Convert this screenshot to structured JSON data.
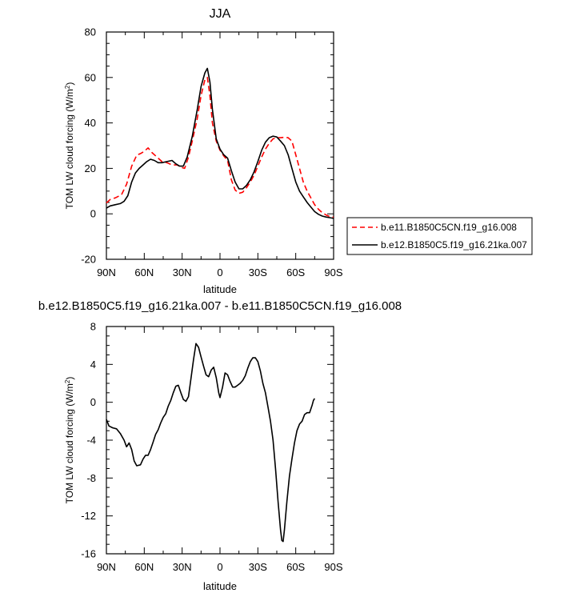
{
  "chart_data": [
    {
      "type": "line",
      "title": "JJA",
      "xlabel": "latitude",
      "ylabel": "TOM LW cloud forcing (W/m²)",
      "xlim": [
        -90,
        90
      ],
      "ylim": [
        -20,
        80
      ],
      "x_ticks": [
        -90,
        -60,
        -30,
        0,
        30,
        60,
        90
      ],
      "x_tick_labels": [
        "90N",
        "60N",
        "30N",
        "0",
        "30S",
        "60S",
        "90S"
      ],
      "y_ticks": [
        -20,
        0,
        20,
        40,
        60,
        80
      ],
      "y_tick_labels": [
        "-20",
        "0",
        "20",
        "40",
        "60",
        "80"
      ],
      "legend_position": "right",
      "series": [
        {
          "name": "b.e11.B1850C5CN.f19_g16.008",
          "color": "#ff0000",
          "dash": "dashed",
          "points": [
            [
              -90,
              4.8
            ],
            [
              -87,
              6.3
            ],
            [
              -83,
              7.0
            ],
            [
              -78,
              8.4
            ],
            [
              -74,
              13.0
            ],
            [
              -70,
              21.0
            ],
            [
              -66,
              25.8
            ],
            [
              -63,
              26.5
            ],
            [
              -60,
              27.5
            ],
            [
              -57,
              29.0
            ],
            [
              -54,
              27.0
            ],
            [
              -50,
              25.0
            ],
            [
              -46,
              23.0
            ],
            [
              -42,
              22.5
            ],
            [
              -38,
              21.5
            ],
            [
              -34,
              21.5
            ],
            [
              -31,
              20.5
            ],
            [
              -28,
              20.0
            ],
            [
              -25,
              25.0
            ],
            [
              -22,
              32.0
            ],
            [
              -18,
              42.0
            ],
            [
              -15,
              52.0
            ],
            [
              -12,
              59.0
            ],
            [
              -10,
              60.0
            ],
            [
              -8,
              52.0
            ],
            [
              -6,
              40.0
            ],
            [
              -3,
              32.0
            ],
            [
              0,
              28.0
            ],
            [
              3,
              25.5
            ],
            [
              6,
              23.5
            ],
            [
              9,
              15.0
            ],
            [
              12,
              10.5
            ],
            [
              15,
              9.0
            ],
            [
              18,
              9.5
            ],
            [
              21,
              11.5
            ],
            [
              24,
              14.0
            ],
            [
              27,
              17.0
            ],
            [
              30,
              21.0
            ],
            [
              33,
              25.0
            ],
            [
              36,
              28.5
            ],
            [
              39,
              31.0
            ],
            [
              42,
              33.0
            ],
            [
              45,
              33.5
            ],
            [
              48,
              33.5
            ],
            [
              51,
              33.7
            ],
            [
              54,
              33.5
            ],
            [
              57,
              32.0
            ],
            [
              60,
              26.0
            ],
            [
              63,
              20.0
            ],
            [
              66,
              14.0
            ],
            [
              69,
              10.0
            ],
            [
              72,
              7.0
            ],
            [
              75,
              4.0
            ],
            [
              78,
              2.0
            ],
            [
              81,
              0.5
            ],
            [
              84,
              -0.5
            ],
            [
              87,
              -1.2
            ],
            [
              90,
              -1.5
            ]
          ]
        },
        {
          "name": "b.e12.B1850C5.f19_g16.21ka.007",
          "color": "#000000",
          "dash": "solid",
          "points": [
            [
              -90,
              2.5
            ],
            [
              -87,
              3.5
            ],
            [
              -83,
              4.0
            ],
            [
              -79,
              4.5
            ],
            [
              -76,
              5.5
            ],
            [
              -73,
              8.0
            ],
            [
              -70,
              14.0
            ],
            [
              -67,
              18.0
            ],
            [
              -64,
              20.0
            ],
            [
              -61,
              21.5
            ],
            [
              -58,
              23.0
            ],
            [
              -55,
              24.0
            ],
            [
              -52,
              23.5
            ],
            [
              -49,
              22.5
            ],
            [
              -46,
              22.5
            ],
            [
              -42,
              23.0
            ],
            [
              -38,
              23.5
            ],
            [
              -35,
              22.0
            ],
            [
              -32,
              21.0
            ],
            [
              -29,
              21.0
            ],
            [
              -26,
              25.0
            ],
            [
              -22,
              34.0
            ],
            [
              -18,
              46.0
            ],
            [
              -15,
              56.0
            ],
            [
              -12,
              62.0
            ],
            [
              -10,
              64.0
            ],
            [
              -8,
              58.0
            ],
            [
              -6,
              46.0
            ],
            [
              -3,
              33.0
            ],
            [
              0,
              28.5
            ],
            [
              3,
              26.0
            ],
            [
              6,
              24.5
            ],
            [
              9,
              19.0
            ],
            [
              12,
              14.0
            ],
            [
              15,
              11.0
            ],
            [
              18,
              11.0
            ],
            [
              21,
              12.5
            ],
            [
              24,
              15.0
            ],
            [
              27,
              18.5
            ],
            [
              30,
              23.0
            ],
            [
              33,
              28.0
            ],
            [
              36,
              31.5
            ],
            [
              39,
              33.5
            ],
            [
              42,
              34.2
            ],
            [
              45,
              33.8
            ],
            [
              48,
              32.0
            ],
            [
              51,
              30.0
            ],
            [
              54,
              26.0
            ],
            [
              57,
              20.0
            ],
            [
              60,
              14.0
            ],
            [
              63,
              10.0
            ],
            [
              66,
              7.5
            ],
            [
              69,
              5.0
            ],
            [
              72,
              3.0
            ],
            [
              75,
              1.0
            ],
            [
              78,
              -0.2
            ],
            [
              81,
              -1.0
            ],
            [
              84,
              -1.4
            ],
            [
              87,
              -1.7
            ],
            [
              90,
              -2.0
            ]
          ]
        }
      ]
    },
    {
      "type": "line",
      "title": "b.e12.B1850C5.f19_g16.21ka.007 - b.e11.B1850C5CN.f19_g16.008",
      "xlabel": "latitude",
      "ylabel": "TOM LW cloud forcing (W/m²)",
      "xlim": [
        -90,
        90
      ],
      "ylim": [
        -16,
        8
      ],
      "x_ticks": [
        -90,
        -60,
        -30,
        0,
        30,
        60,
        90
      ],
      "x_tick_labels": [
        "90N",
        "60N",
        "30N",
        "0",
        "30S",
        "60S",
        "90S"
      ],
      "y_ticks": [
        -16,
        -12,
        -8,
        -4,
        0,
        4,
        8
      ],
      "y_tick_labels": [
        "-16",
        "-12",
        "-8",
        "-4",
        "0",
        "4",
        "8"
      ],
      "series": [
        {
          "color": "#000000",
          "dash": "solid",
          "points": [
            [
              -90,
              -1.8
            ],
            [
              -88,
              -2.5
            ],
            [
              -85,
              -2.7
            ],
            [
              -82,
              -2.8
            ],
            [
              -79,
              -3.3
            ],
            [
              -76,
              -4.0
            ],
            [
              -74,
              -4.7
            ],
            [
              -72,
              -4.3
            ],
            [
              -70,
              -5.0
            ],
            [
              -68,
              -6.2
            ],
            [
              -66,
              -6.7
            ],
            [
              -63,
              -6.6
            ],
            [
              -61,
              -6.0
            ],
            [
              -59,
              -5.6
            ],
            [
              -57,
              -5.6
            ],
            [
              -55,
              -5.0
            ],
            [
              -53,
              -4.2
            ],
            [
              -51,
              -3.4
            ],
            [
              -49,
              -2.9
            ],
            [
              -47,
              -2.2
            ],
            [
              -45,
              -1.6
            ],
            [
              -43,
              -1.2
            ],
            [
              -41,
              -0.4
            ],
            [
              -39,
              0.2
            ],
            [
              -37,
              1.0
            ],
            [
              -35,
              1.7
            ],
            [
              -33,
              1.8
            ],
            [
              -31,
              1.0
            ],
            [
              -29,
              0.3
            ],
            [
              -27,
              0.1
            ],
            [
              -25,
              0.6
            ],
            [
              -23,
              2.5
            ],
            [
              -21,
              4.5
            ],
            [
              -19,
              6.2
            ],
            [
              -17,
              5.8
            ],
            [
              -15,
              4.8
            ],
            [
              -13,
              3.8
            ],
            [
              -11,
              2.9
            ],
            [
              -9,
              2.7
            ],
            [
              -7,
              3.4
            ],
            [
              -5,
              3.7
            ],
            [
              -3,
              2.6
            ],
            [
              -1,
              1.0
            ],
            [
              0,
              0.5
            ],
            [
              2,
              1.6
            ],
            [
              4,
              3.1
            ],
            [
              6,
              2.9
            ],
            [
              8,
              2.2
            ],
            [
              10,
              1.6
            ],
            [
              12,
              1.6
            ],
            [
              14,
              1.8
            ],
            [
              16,
              2.0
            ],
            [
              18,
              2.3
            ],
            [
              20,
              2.8
            ],
            [
              22,
              3.6
            ],
            [
              24,
              4.3
            ],
            [
              26,
              4.7
            ],
            [
              28,
              4.7
            ],
            [
              30,
              4.3
            ],
            [
              32,
              3.3
            ],
            [
              34,
              2.0
            ],
            [
              36,
              1.0
            ],
            [
              38,
              -0.5
            ],
            [
              40,
              -2.0
            ],
            [
              42,
              -4.0
            ],
            [
              44,
              -7.0
            ],
            [
              46,
              -10.5
            ],
            [
              48,
              -13.5
            ],
            [
              49,
              -14.6
            ],
            [
              50,
              -14.7
            ],
            [
              51,
              -13.5
            ],
            [
              53,
              -10.5
            ],
            [
              55,
              -7.8
            ],
            [
              57,
              -6.0
            ],
            [
              59,
              -4.3
            ],
            [
              61,
              -3.0
            ],
            [
              63,
              -2.3
            ],
            [
              65,
              -2.0
            ],
            [
              67,
              -1.3
            ],
            [
              69,
              -1.1
            ],
            [
              71,
              -1.1
            ],
            [
              73,
              -0.3
            ],
            [
              74,
              0.2
            ],
            [
              75,
              0.4
            ]
          ]
        }
      ]
    }
  ]
}
